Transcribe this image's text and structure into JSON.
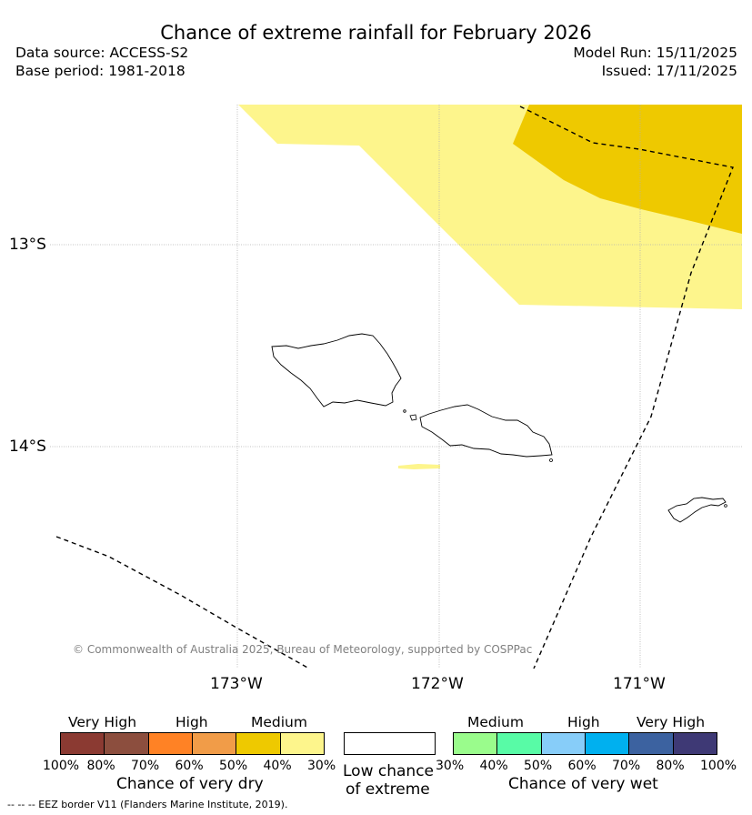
{
  "title": "Chance of extreme rainfall for February 2026",
  "data_source": "Data source: ACCESS-S2",
  "base_period": "Base period: 1981-2018",
  "model_run": "Model Run: 15/11/2025",
  "issued": "Issued: 17/11/2025",
  "map": {
    "latitude_labels": [
      "13°S",
      "14°S"
    ],
    "longitude_labels": [
      "173°W",
      "172°W",
      "171°W"
    ],
    "copyright": "© Commonwealth of Australia 2025, Bureau of Meteorology, supported by COSPPac",
    "colors": {
      "medium_wet_light": "#fdf58c",
      "medium_wet_dark": "#eec900",
      "coast": "#000000",
      "grid": "#b0b0b0"
    }
  },
  "legend": {
    "dry": {
      "categories": [
        "Very High",
        "High",
        "Medium"
      ],
      "title": "Chance of very dry",
      "ticks": [
        "100%",
        "80%",
        "70%",
        "60%",
        "50%",
        "40%",
        "30%"
      ],
      "colors": [
        "#8b3a32",
        "#8c4e3e",
        "#ff8225",
        "#f19c48",
        "#eec900",
        "#fdf58c"
      ]
    },
    "neutral": {
      "title_line1": "Low chance",
      "title_line2": "of extreme",
      "color": "#ffffff"
    },
    "wet": {
      "categories": [
        "Medium",
        "High",
        "Very High"
      ],
      "title": "Chance of very wet",
      "ticks": [
        "30%",
        "40%",
        "50%",
        "60%",
        "70%",
        "80%",
        "100%"
      ],
      "colors": [
        "#9afc8c",
        "#58fba6",
        "#87cdf9",
        "#00b0ef",
        "#3c62a0",
        "#3e3975"
      ]
    }
  },
  "footnote": "--  --  -- EEZ border V11 (Flanders Marine Institute, 2019)."
}
